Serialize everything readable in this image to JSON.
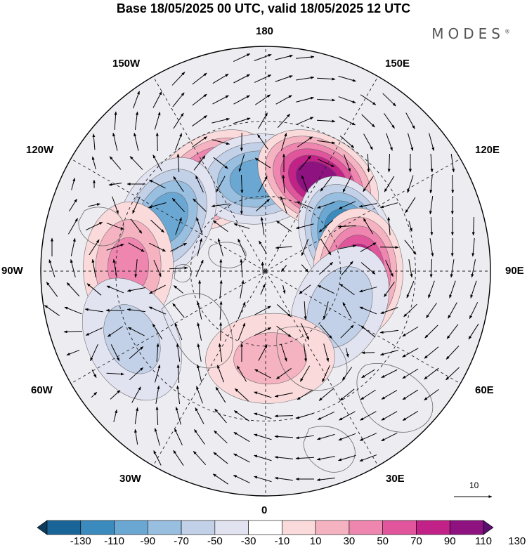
{
  "title": "Base 18/05/2025 00 UTC, valid 18/05/2025 12 UTC",
  "brand": "MODES",
  "brand_mark": "®",
  "longitude_labels": {
    "lon_180": "180",
    "lon_150e": "150E",
    "lon_120e": "120E",
    "lon_90e": "90E",
    "lon_60e": "60E",
    "lon_30e": "30E",
    "lon_0": "0",
    "lon_30w": "30W",
    "lon_60w": "60W",
    "lon_90w": "90W",
    "lon_120w": "120W",
    "lon_150w": "150W"
  },
  "reference_vector": "10",
  "colorbar": {
    "ticks": [
      "-130",
      "-110",
      "-90",
      "-70",
      "-50",
      "-30",
      "-10",
      "10",
      "30",
      "50",
      "70",
      "90",
      "110",
      "130"
    ],
    "colors": [
      "#0d3b5c",
      "#1a6598",
      "#3b8bbf",
      "#6aa7d2",
      "#98bee0",
      "#c3d1e8",
      "#e2e3f1",
      "#ffffff",
      "#fadadb",
      "#f5b3c2",
      "#ee86b0",
      "#e0559c",
      "#c22187",
      "#8e1280",
      "#5b0f6e"
    ]
  },
  "anomaly_centers": [
    {
      "name": "pos-150w",
      "lon": -150,
      "lat": 48,
      "value": 95
    },
    {
      "name": "neg-180",
      "lon": -175,
      "lat": 53,
      "value": -80
    },
    {
      "name": "pos-150e",
      "lon": 150,
      "lat": 48,
      "value": 120
    },
    {
      "name": "neg-120e",
      "lon": 112,
      "lat": 55,
      "value": -115
    },
    {
      "name": "pos-90e",
      "lon": 89,
      "lat": 53,
      "value": 110
    },
    {
      "name": "neg-60e",
      "lon": 64,
      "lat": 57,
      "value": -45
    },
    {
      "name": "neg-120w",
      "lon": -118,
      "lat": 45,
      "value": -80
    },
    {
      "name": "pos-90w",
      "lon": -92,
      "lat": 35,
      "value": 55
    },
    {
      "name": "neg-60w",
      "lon": -63,
      "lat": 30,
      "value": -35
    },
    {
      "name": "pos-0",
      "lon": 3,
      "lat": 55,
      "value": 35
    }
  ]
}
